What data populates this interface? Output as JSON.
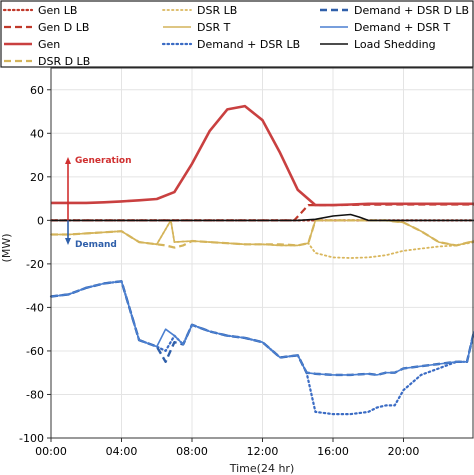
{
  "chart_data": {
    "type": "line",
    "xlabel": "Time(24 hr)",
    "ylabel": "(MW)",
    "xlim": [
      0,
      24
    ],
    "ylim": [
      -100,
      70
    ],
    "grid": true,
    "legend_position": "top",
    "x_ticks": [
      "00:00",
      "04:00",
      "08:00",
      "12:00",
      "16:00",
      "20:00"
    ],
    "x_tick_values": [
      0,
      4,
      8,
      12,
      16,
      20
    ],
    "y_ticks": [
      60,
      40,
      20,
      0,
      -20,
      -40,
      -60,
      -80,
      -100
    ],
    "annotations": {
      "generation": "Generation",
      "demand": "Demand",
      "generation_color": "#d03030",
      "demand_color": "#2f5faa"
    },
    "legend_labels": [
      "Gen LB",
      "DSR LB",
      "Demand + DSR D LB",
      "Gen D LB",
      "DSR T",
      "Demand + DSR T",
      "Gen",
      "Demand + DSR LB",
      "Load Shedding",
      "DSR D LB"
    ],
    "series": [
      {
        "name": "Gen LB",
        "color": "#c0392b",
        "dash": "dotted",
        "width": 2.2,
        "x": [
          0,
          1,
          2,
          3,
          4,
          5,
          6,
          7,
          8,
          9,
          10,
          11,
          12,
          13,
          14,
          14.6,
          14.7,
          15,
          16,
          17,
          18,
          19,
          20,
          21,
          22,
          23,
          24
        ],
        "y": [
          0,
          0,
          0,
          0,
          0,
          0,
          0,
          0,
          0,
          0,
          0,
          0,
          0,
          0,
          0,
          0,
          0,
          0,
          0,
          0,
          0,
          0,
          0,
          0,
          0,
          0,
          0
        ]
      },
      {
        "name": "Gen D LB",
        "color": "#c0392b",
        "dash": "dashed",
        "width": 2.2,
        "x": [
          0,
          2,
          4,
          6,
          8,
          10,
          12,
          13.8,
          14.6,
          14.8,
          15,
          16,
          18,
          20,
          22,
          24
        ],
        "y": [
          0,
          0,
          0,
          0,
          0,
          0,
          0,
          0,
          7,
          7,
          7,
          7,
          7.2,
          7.3,
          7.3,
          7.3
        ]
      },
      {
        "name": "Gen",
        "color": "#c94040",
        "dash": "solid",
        "width": 2.6,
        "x": [
          0,
          1,
          2,
          3,
          4,
          5,
          6,
          7,
          8,
          9,
          10,
          11,
          12,
          13,
          14,
          15,
          16,
          17,
          18,
          19,
          20,
          21,
          22,
          23,
          24
        ],
        "y": [
          8,
          8,
          8,
          8.3,
          8.7,
          9.2,
          9.8,
          13,
          26,
          41,
          51,
          52.5,
          46,
          31,
          14,
          7,
          7,
          7.3,
          7.6,
          7.6,
          7.6,
          7.6,
          7.6,
          7.6,
          7.6
        ]
      },
      {
        "name": "DSR D LB",
        "color": "#d4b45a",
        "dash": "dashed",
        "width": 2.2,
        "x": [
          0,
          1,
          2,
          3,
          4,
          5,
          6,
          6.5,
          7,
          7.5,
          8,
          9,
          10,
          11,
          12,
          13,
          14,
          14.6,
          15,
          16,
          17,
          18,
          19,
          20,
          21,
          22,
          23,
          24
        ],
        "y": [
          -6.5,
          -6.5,
          -6,
          -5.5,
          -5,
          -10,
          -11,
          -11.5,
          -12.5,
          -11.5,
          -9.5,
          -10,
          -10.5,
          -11,
          -11,
          -11,
          -11.5,
          -10.5,
          0,
          0,
          0,
          0,
          0,
          -1,
          -5,
          -10,
          -11.5,
          -9.5
        ]
      },
      {
        "name": "DSR LB",
        "color": "#d9b65c",
        "dash": "dotted",
        "width": 1.8,
        "x": [
          0,
          1,
          2,
          3,
          4,
          5,
          6,
          6.8,
          7,
          8,
          9,
          10,
          11,
          12,
          13,
          14,
          14.6,
          15,
          16,
          17,
          18,
          19,
          20,
          21,
          22,
          23,
          24
        ],
        "y": [
          -6.5,
          -6.5,
          -6,
          -5.5,
          -5,
          -10,
          -11,
          0,
          -10,
          -9.5,
          -10,
          -10.5,
          -11,
          -11,
          -11.5,
          -11.5,
          -10.5,
          -15,
          -17,
          -17.3,
          -17,
          -16,
          -14,
          -13,
          -12,
          -11.5,
          -10
        ]
      },
      {
        "name": "DSR T",
        "color": "#d4b45a",
        "dash": "solid",
        "width": 1.6,
        "x": [
          0,
          1,
          2,
          3,
          4,
          5,
          6,
          6.8,
          7,
          8,
          9,
          10,
          11,
          12,
          13,
          14,
          14.6,
          15,
          16,
          17,
          18,
          19,
          20,
          21,
          22,
          23,
          24
        ],
        "y": [
          -6.5,
          -6.5,
          -6,
          -5.5,
          -5,
          -10,
          -11,
          0,
          -10,
          -9.5,
          -10,
          -10.5,
          -11,
          -11,
          -11.5,
          -11.5,
          -10.5,
          0,
          0,
          0,
          0,
          0,
          -1,
          -5,
          -10,
          -11.5,
          -9.5
        ]
      },
      {
        "name": "Demand + DSR LB",
        "color": "#3a6bc4",
        "dash": "dotted",
        "width": 2.2,
        "x": [
          0,
          1,
          2,
          3,
          4,
          5,
          6,
          6.5,
          7,
          7.5,
          8,
          9,
          10,
          11,
          12,
          13,
          14,
          14.5,
          15,
          16,
          17,
          18,
          18.5,
          19,
          19.5,
          20,
          21,
          22,
          23,
          23.6,
          24
        ],
        "y": [
          -35,
          -34,
          -31,
          -29,
          -28,
          -55,
          -58,
          -60,
          -53,
          -57,
          -48,
          -51,
          -53,
          -54,
          -56,
          -63,
          -62,
          -70,
          -88,
          -89,
          -89,
          -88,
          -86,
          -85,
          -85,
          -78,
          -71,
          -68,
          -65,
          -65,
          -51
        ]
      },
      {
        "name": "Demand + DSR D LB",
        "color": "#2f5faa",
        "dash": "dashed",
        "width": 2.4,
        "x": [
          0,
          1,
          2,
          3,
          4,
          5,
          6,
          6.5,
          7,
          7.5,
          8,
          9,
          10,
          11,
          12,
          13,
          14,
          14.5,
          15,
          16,
          17,
          18,
          18.5,
          19,
          19.5,
          20,
          21,
          22,
          23,
          23.6,
          24
        ],
        "y": [
          -35,
          -34,
          -31,
          -29,
          -28,
          -55,
          -58,
          -65,
          -56,
          -57,
          -48,
          -51,
          -53,
          -54,
          -56,
          -63,
          -62,
          -70,
          -70.5,
          -71,
          -71,
          -70.5,
          -71,
          -70,
          -70,
          -68,
          -67,
          -66,
          -65,
          -65,
          -51
        ]
      },
      {
        "name": "Demand + DSR T",
        "color": "#4a7fd0",
        "dash": "solid",
        "width": 1.6,
        "x": [
          0,
          1,
          2,
          3,
          4,
          5,
          6,
          6.5,
          7,
          7.5,
          8,
          9,
          10,
          11,
          12,
          13,
          14,
          14.5,
          15,
          16,
          17,
          18,
          18.5,
          19,
          19.5,
          20,
          21,
          22,
          23,
          23.6,
          24
        ],
        "y": [
          -35,
          -34,
          -31,
          -29,
          -28,
          -55,
          -58,
          -50,
          -53,
          -57,
          -48,
          -51,
          -53,
          -54,
          -56,
          -63,
          -62,
          -70,
          -70.5,
          -71,
          -71,
          -70.5,
          -71,
          -70,
          -70,
          -68,
          -67,
          -66,
          -65,
          -65,
          -51
        ]
      },
      {
        "name": "Load Shedding",
        "color": "#111111",
        "dash": "solid",
        "width": 1.6,
        "x": [
          0,
          2,
          4,
          6,
          8,
          10,
          12,
          14,
          15,
          16,
          17,
          17.5,
          18,
          19,
          20,
          22,
          24
        ],
        "y": [
          0,
          0,
          0,
          0,
          0,
          0,
          0,
          0,
          0.5,
          2,
          2.7,
          1.5,
          0,
          0,
          0,
          0,
          0
        ]
      }
    ]
  }
}
